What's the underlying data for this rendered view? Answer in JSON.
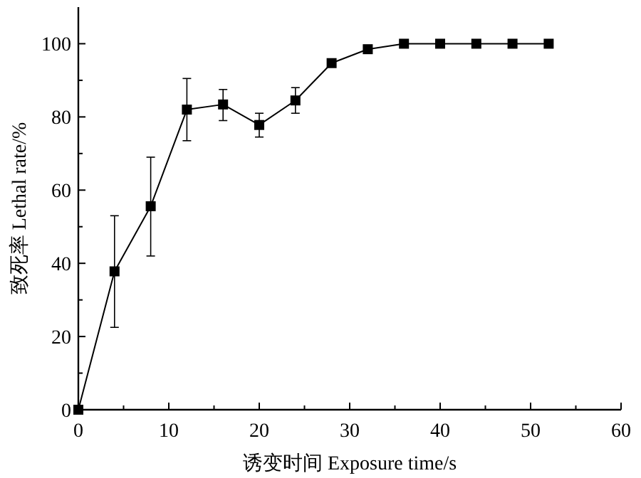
{
  "chart_data": {
    "type": "line",
    "xlabel": "诱变时间 Exposure time/s",
    "ylabel": "致死率 Lethal rate/%",
    "x": [
      0,
      4,
      8,
      12,
      16,
      20,
      24,
      28,
      32,
      36,
      40,
      44,
      48,
      52
    ],
    "series": [
      {
        "color": "#000000",
        "values": [
          0,
          37.8,
          55.6,
          82,
          83.4,
          77.8,
          84.5,
          94.7,
          98.5,
          100,
          100,
          100,
          100,
          100
        ],
        "errors": [
          null,
          [
            22.5,
            53
          ],
          [
            42,
            69
          ],
          [
            73.5,
            90.5
          ],
          [
            79,
            87.5
          ],
          [
            74.5,
            81
          ],
          [
            81,
            88
          ],
          null,
          null,
          null,
          null,
          null,
          null,
          null
        ]
      }
    ],
    "xlim": [
      0,
      60
    ],
    "ylim": [
      0,
      110
    ],
    "xticks": [
      0,
      {
        "value": 5,
        "label": null
      },
      10,
      {
        "value": 15,
        "label": null
      },
      20,
      {
        "value": 25,
        "label": null
      },
      30,
      {
        "value": 35,
        "label": null
      },
      40,
      {
        "value": 45,
        "label": null
      },
      50,
      {
        "value": 55,
        "label": null
      },
      60
    ],
    "yticks": [
      0,
      {
        "value": 10,
        "label": null
      },
      20,
      {
        "value": 30,
        "label": null
      },
      40,
      {
        "value": 50,
        "label": null
      },
      60,
      {
        "value": 70,
        "label": null
      },
      80,
      {
        "value": 90,
        "label": null
      },
      100
    ],
    "marker": "square",
    "line_style": "solid"
  }
}
